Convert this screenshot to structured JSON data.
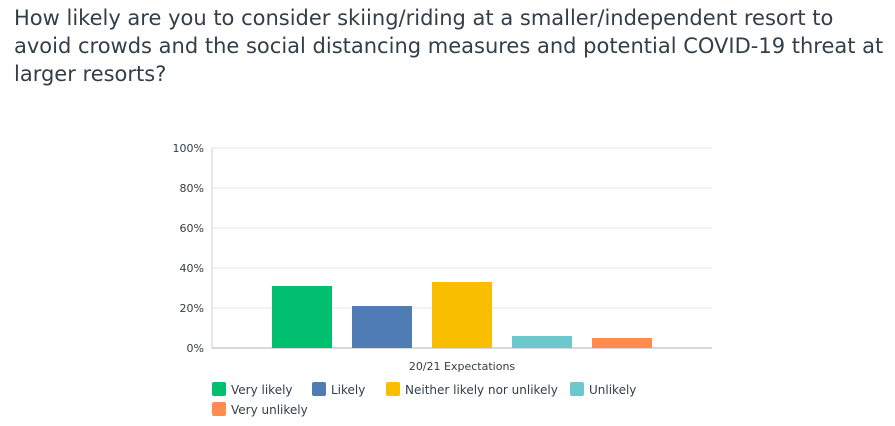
{
  "question": {
    "text": "How likely are you to consider skiing/riding at a smaller/independent resort to avoid crowds and the social distancing measures and potential COVID-19 threat at larger resorts?"
  },
  "chart_data": {
    "type": "bar",
    "categories": [
      "20/21 Expectations"
    ],
    "series": [
      {
        "name": "Very likely",
        "values": [
          31
        ],
        "color": "#00bf6f"
      },
      {
        "name": "Likely",
        "values": [
          21
        ],
        "color": "#507cb6"
      },
      {
        "name": "Neither likely nor unlikely",
        "values": [
          33
        ],
        "color": "#f9be00"
      },
      {
        "name": "Unlikely",
        "values": [
          6
        ],
        "color": "#6bc8cd"
      },
      {
        "name": "Very unlikely",
        "values": [
          5
        ],
        "color": "#ff8b4f"
      }
    ],
    "y_ticks": [
      "0%",
      "20%",
      "40%",
      "60%",
      "80%",
      "100%"
    ],
    "ylim": [
      0,
      100
    ],
    "grid": true,
    "legend_position": "bottom"
  }
}
